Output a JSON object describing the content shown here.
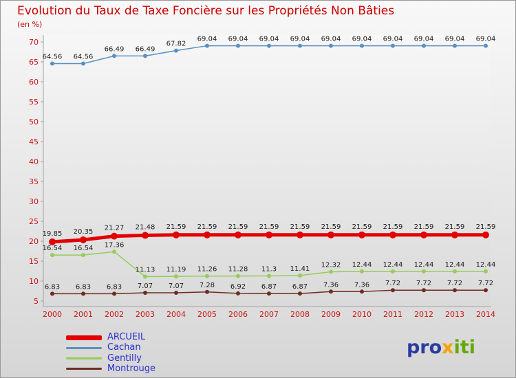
{
  "title": "Evolution du Taux de Taxe Foncière sur les Propriétés Non Bâties",
  "subtitle": "(en %)",
  "logo": {
    "pro": "pro",
    "x": "x",
    "iti": "iti"
  },
  "colors": {
    "title_red": "#cc0000",
    "axis_label_red": "#cc1111",
    "data_label": "#1c1c1c",
    "legend_text_blue": "#2b2bd0"
  },
  "chart_data": {
    "type": "line",
    "x": [
      2000,
      2001,
      2002,
      2003,
      2004,
      2005,
      2006,
      2007,
      2008,
      2009,
      2010,
      2011,
      2012,
      2013,
      2014
    ],
    "series": [
      {
        "name": "ARCUEIL",
        "color": "#e30000",
        "style": "thick",
        "values": [
          19.85,
          20.35,
          21.27,
          21.48,
          21.59,
          21.59,
          21.59,
          21.59,
          21.59,
          21.59,
          21.59,
          21.59,
          21.59,
          21.59,
          21.59
        ]
      },
      {
        "name": "Cachan",
        "color": "#5b8fc0",
        "style": "thin",
        "values": [
          64.56,
          64.56,
          66.49,
          66.49,
          67.82,
          69.04,
          69.04,
          69.04,
          69.04,
          69.04,
          69.04,
          69.04,
          69.04,
          69.04,
          69.04
        ]
      },
      {
        "name": "Gentilly",
        "color": "#96cc58",
        "style": "thin",
        "values": [
          16.54,
          16.54,
          17.36,
          11.13,
          11.19,
          11.26,
          11.28,
          11.3,
          11.41,
          12.32,
          12.44,
          12.44,
          12.44,
          12.44,
          12.44
        ]
      },
      {
        "name": "Montrouge",
        "color": "#6f2b22",
        "style": "thin",
        "values": [
          6.83,
          6.83,
          6.83,
          7.07,
          7.07,
          7.28,
          6.92,
          6.87,
          6.87,
          7.36,
          7.36,
          7.72,
          7.72,
          7.72,
          7.72
        ]
      }
    ],
    "ylim": [
      5,
      70
    ],
    "y_ticks": [
      5,
      10,
      15,
      20,
      25,
      30,
      35,
      40,
      45,
      50,
      55,
      60,
      65,
      70
    ],
    "grid": false,
    "data_labels": true,
    "legend_position": "bottom-left"
  }
}
